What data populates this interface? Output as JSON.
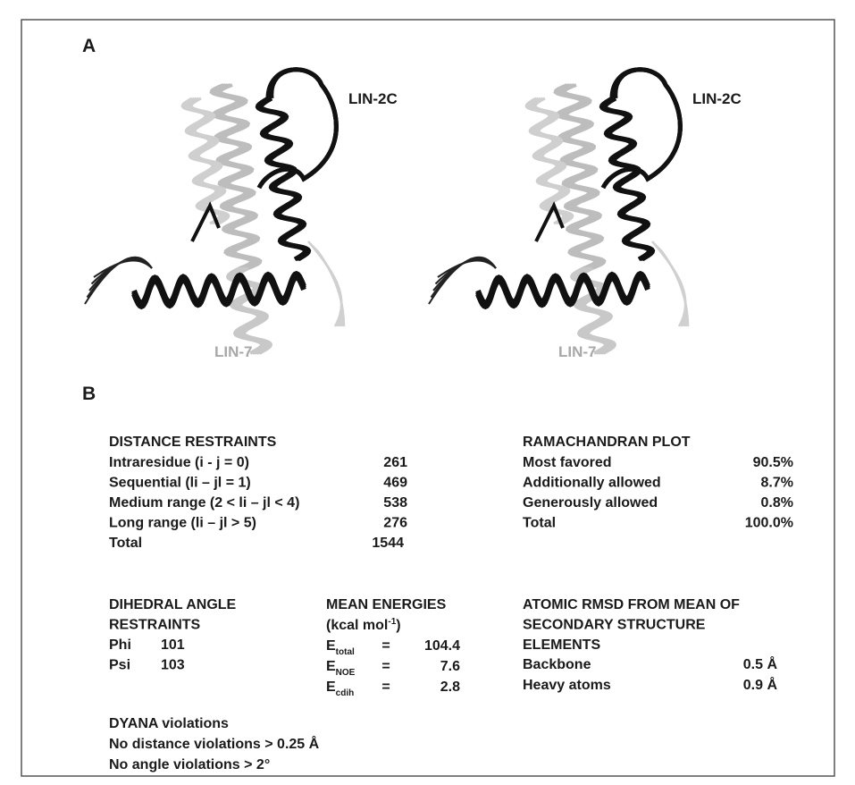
{
  "panel_a": {
    "label": "A",
    "views": [
      {
        "chain_1": "LIN-2C",
        "chain_2": "LIN-7"
      },
      {
        "chain_1": "LIN-2C",
        "chain_2": "LIN-7"
      }
    ]
  },
  "panel_b": {
    "label": "B",
    "distance_restraints": {
      "title": "DISTANCE RESTRAINTS",
      "rows": [
        [
          "Intraresidue (i - j = 0)",
          "261"
        ],
        [
          "Sequential (li – jl = 1)",
          "469"
        ],
        [
          "Medium range (2 < li – jl < 4)",
          "538"
        ],
        [
          "Long range (li – jl > 5)",
          "276"
        ],
        [
          "Total",
          "1544"
        ]
      ]
    },
    "ramachandran": {
      "title": "RAMACHANDRAN PLOT",
      "rows": [
        [
          "Most favored",
          "90.5%"
        ],
        [
          "Additionally allowed",
          "8.7%"
        ],
        [
          "Generously allowed",
          "0.8%"
        ],
        [
          "Total",
          "100.0%"
        ]
      ]
    },
    "dihedral": {
      "title_lines": [
        "DIHEDRAL ANGLE",
        "RESTRAINTS"
      ],
      "rows": [
        [
          "Phi",
          "101"
        ],
        [
          "Psi",
          "103"
        ]
      ]
    },
    "mean_energies": {
      "title": "MEAN ENERGIES",
      "unit": {
        "text": "(kcal mol",
        "superscript": "-1",
        "suffix": ")"
      },
      "rows": [
        {
          "symbol": "E",
          "subscript": "total",
          "relation": "=",
          "value": "104.4"
        },
        {
          "symbol": "E",
          "subscript": "NOE",
          "relation": "=",
          "value": "7.6"
        },
        {
          "symbol": "E",
          "subscript": "cdih",
          "relation": "=",
          "value": "2.8"
        }
      ]
    },
    "rmsd": {
      "title_lines": [
        "ATOMIC RMSD FROM MEAN OF",
        "SECONDARY STRUCTURE",
        "ELEMENTS"
      ],
      "rows": [
        [
          "Backbone",
          "0.5 Å"
        ],
        [
          "Heavy atoms",
          "0.9 Å"
        ]
      ]
    },
    "dyana": {
      "title": "DYANA violations",
      "lines": [
        "No distance violations > 0.25 Å",
        "No angle violations > 2°"
      ]
    }
  }
}
